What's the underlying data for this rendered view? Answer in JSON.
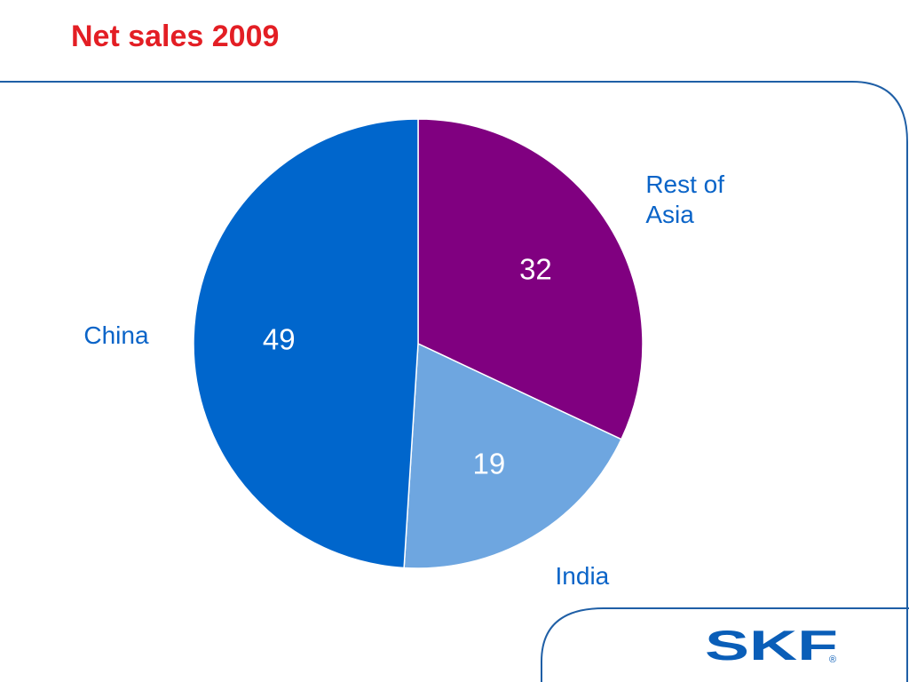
{
  "slide": {
    "title": "Net sales 2009",
    "title_color": "#e31e24",
    "frame_color": "#1f5fa6"
  },
  "chart_data": {
    "type": "pie",
    "title": "Net sales 2009",
    "start_angle_deg": 0,
    "direction": "clockwise",
    "slices": [
      {
        "label_lines": [
          "Rest of",
          "Asia"
        ],
        "value": 32,
        "color": "#800080"
      },
      {
        "label_lines": [
          "India"
        ],
        "value": 19,
        "color": "#6ea6e0"
      },
      {
        "label_lines": [
          "China"
        ],
        "value": 49,
        "color": "#0066cc"
      }
    ],
    "category_label_color": "#0a64c8",
    "value_label_color": "#ffffff"
  },
  "logo": {
    "text": "SKF",
    "mark": "®",
    "color": "#0a5eb8"
  }
}
